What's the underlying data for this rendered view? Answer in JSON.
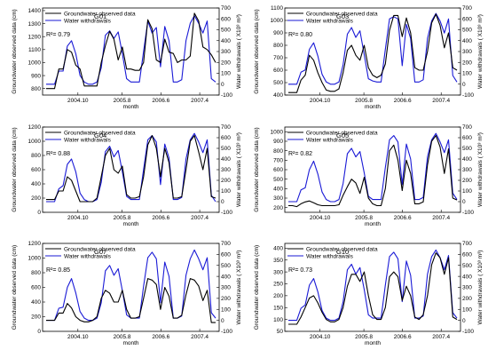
{
  "colors": {
    "groundwater": "#000000",
    "withdrawals": "#1a1ad6"
  },
  "chart_data": [
    {
      "type": "line",
      "title": "G01",
      "annotation": "R²= 0.79",
      "xlabel": "month",
      "ylabel": "Groundwater observed data (cm)",
      "y2label": "Water withdrawals ( X10³ m³)",
      "x_ticks": [
        "2004.10",
        "2005.8",
        "2006.6",
        "2007.4"
      ],
      "ylim": [
        750,
        1420
      ],
      "y_ticks": [
        800,
        900,
        1000,
        1100,
        1200,
        1300,
        1400
      ],
      "y2lim": [
        -100,
        700
      ],
      "y2_ticks": [
        -100,
        0,
        100,
        200,
        300,
        400,
        500,
        600,
        700
      ],
      "series": [
        {
          "name": "Groundwater observed data",
          "axis": "left",
          "values": [
            800,
            800,
            800,
            950,
            950,
            1100,
            1080,
            980,
            950,
            820,
            820,
            820,
            820,
            1000,
            1130,
            1240,
            1180,
            1020,
            1120,
            950,
            950,
            940,
            940,
            1000,
            1330,
            1260,
            1020,
            1000,
            1180,
            1080,
            1070,
            1000,
            1020,
            1020,
            1050,
            1380,
            1320,
            1120,
            1100,
            1060,
            1000
          ]
        },
        {
          "name": "Water withdrawals",
          "axis": "right",
          "values": [
            0,
            0,
            0,
            120,
            120,
            350,
            400,
            280,
            80,
            20,
            0,
            0,
            20,
            150,
            450,
            490,
            420,
            480,
            280,
            50,
            20,
            20,
            20,
            300,
            580,
            470,
            520,
            160,
            530,
            400,
            20,
            20,
            40,
            400,
            560,
            630,
            560,
            470,
            580,
            50,
            20
          ]
        }
      ]
    },
    {
      "type": "line",
      "title": "G03",
      "annotation": "R²= 0.80",
      "xlabel": "month",
      "ylabel": "Groundwater observed data (cm)",
      "y2label": "Water withdrawals ( X10³ m³)",
      "x_ticks": [
        "2004.10",
        "2005.8",
        "2006.6",
        "2007.4"
      ],
      "ylim": [
        400,
        1100
      ],
      "y_ticks": [
        400,
        500,
        600,
        700,
        800,
        900,
        1000,
        1100
      ],
      "y2lim": [
        -100,
        700
      ],
      "y2_ticks": [
        -100,
        0,
        100,
        200,
        300,
        400,
        500,
        600,
        700
      ],
      "series": [
        {
          "name": "Groundwater observed data",
          "axis": "left",
          "values": [
            420,
            420,
            420,
            520,
            560,
            720,
            680,
            580,
            500,
            440,
            430,
            430,
            450,
            580,
            760,
            800,
            720,
            680,
            800,
            620,
            560,
            540,
            560,
            650,
            920,
            1040,
            1040,
            870,
            1020,
            900,
            620,
            600,
            600,
            750,
            980,
            1050,
            960,
            780,
            900,
            620,
            600
          ]
        },
        {
          "name": "Water withdrawals",
          "axis": "right",
          "values": [
            0,
            0,
            0,
            110,
            130,
            320,
            380,
            260,
            90,
            20,
            0,
            0,
            20,
            180,
            460,
            520,
            430,
            490,
            270,
            50,
            30,
            20,
            20,
            320,
            600,
            620,
            600,
            170,
            550,
            420,
            20,
            20,
            40,
            420,
            580,
            650,
            580,
            470,
            600,
            80,
            20
          ]
        }
      ]
    },
    {
      "type": "line",
      "title": "G04",
      "annotation": "R²= 0.88",
      "xlabel": "month",
      "ylabel": "Groundwater observed data (cm)",
      "y2label": "Water withdrawals ( X10³ m³)",
      "x_ticks": [
        "2004.10",
        "2005.8",
        "2006.6",
        "2007.4"
      ],
      "ylim": [
        0,
        1200
      ],
      "y_ticks": [
        0,
        200,
        400,
        600,
        800,
        1000,
        1200
      ],
      "y2lim": [
        -100,
        700
      ],
      "y2_ticks": [
        -100,
        0,
        100,
        200,
        300,
        400,
        500,
        600,
        700
      ],
      "series": [
        {
          "name": "Groundwater observed data",
          "axis": "left",
          "values": [
            180,
            180,
            180,
            300,
            300,
            500,
            450,
            300,
            150,
            150,
            150,
            150,
            200,
            500,
            800,
            900,
            600,
            550,
            650,
            250,
            200,
            200,
            220,
            500,
            950,
            1080,
            900,
            500,
            900,
            700,
            200,
            200,
            220,
            600,
            1000,
            1080,
            850,
            600,
            900,
            220,
            200
          ]
        },
        {
          "name": "Water withdrawals",
          "axis": "right",
          "values": [
            0,
            0,
            0,
            120,
            150,
            350,
            400,
            280,
            80,
            20,
            0,
            0,
            20,
            180,
            470,
            520,
            420,
            480,
            280,
            50,
            20,
            20,
            20,
            300,
            580,
            620,
            560,
            160,
            540,
            410,
            20,
            20,
            40,
            400,
            580,
            640,
            560,
            460,
            580,
            60,
            0
          ]
        }
      ]
    },
    {
      "type": "line",
      "title": "G05",
      "annotation": "R²= 0.82",
      "xlabel": "month",
      "ylabel": "Groundwater observed data (cm)",
      "y2label": "Water withdrawals ( X10³ m³)",
      "x_ticks": [
        "2004.10",
        "2005.8",
        "2006.6",
        "2007.4"
      ],
      "ylim": [
        150,
        1050
      ],
      "y_ticks": [
        200,
        300,
        400,
        500,
        600,
        700,
        800,
        900,
        1000
      ],
      "y2lim": [
        -100,
        700
      ],
      "y2_ticks": [
        -100,
        0,
        100,
        200,
        300,
        400,
        500,
        600,
        700
      ],
      "series": [
        {
          "name": "Groundwater observed data",
          "axis": "left",
          "values": [
            220,
            220,
            210,
            240,
            260,
            270,
            250,
            230,
            220,
            220,
            220,
            220,
            230,
            330,
            420,
            500,
            460,
            350,
            520,
            300,
            240,
            220,
            220,
            400,
            800,
            860,
            700,
            380,
            700,
            560,
            240,
            240,
            260,
            650,
            900,
            960,
            840,
            560,
            820,
            300,
            280
          ]
        },
        {
          "name": "Water withdrawals",
          "axis": "right",
          "values": [
            0,
            0,
            0,
            110,
            130,
            300,
            380,
            260,
            90,
            20,
            0,
            0,
            20,
            170,
            450,
            500,
            420,
            470,
            270,
            50,
            20,
            20,
            20,
            320,
            580,
            620,
            560,
            160,
            540,
            400,
            20,
            20,
            40,
            420,
            580,
            640,
            560,
            460,
            580,
            80,
            20
          ]
        }
      ]
    },
    {
      "type": "line",
      "title": "G07",
      "annotation": "R²= 0.85",
      "xlabel": "month",
      "ylabel": "Groundwater observed data (cm)",
      "y2label": "Water withdrawals ( X10³ m³)",
      "x_ticks": [
        "2004.10",
        "2005.8",
        "2006.6",
        "2007.4"
      ],
      "ylim": [
        0,
        1200
      ],
      "y_ticks": [
        0,
        200,
        400,
        600,
        800,
        1000,
        1200
      ],
      "y2lim": [
        -100,
        700
      ],
      "y2_ticks": [
        -100,
        0,
        100,
        200,
        300,
        400,
        500,
        600,
        700
      ],
      "series": [
        {
          "name": "Groundwater observed data",
          "axis": "left",
          "values": [
            150,
            150,
            150,
            250,
            250,
            380,
            320,
            200,
            150,
            130,
            130,
            150,
            200,
            450,
            560,
            520,
            400,
            400,
            560,
            300,
            180,
            180,
            200,
            450,
            720,
            700,
            640,
            300,
            600,
            480,
            180,
            180,
            220,
            500,
            720,
            700,
            620,
            420,
            560,
            120,
            120
          ]
        },
        {
          "name": "Water withdrawals",
          "axis": "right",
          "values": [
            0,
            0,
            0,
            110,
            120,
            300,
            380,
            250,
            80,
            20,
            0,
            0,
            20,
            160,
            450,
            500,
            410,
            470,
            270,
            50,
            20,
            20,
            20,
            310,
            570,
            620,
            560,
            160,
            530,
            400,
            20,
            20,
            40,
            410,
            560,
            640,
            560,
            460,
            570,
            70,
            20
          ]
        }
      ]
    },
    {
      "type": "line",
      "title": "G10",
      "annotation": "R²= 0.73",
      "xlabel": "month",
      "ylabel": "Groundwater observed data (cm)",
      "y2label": "Water withdrawals ( X10³ m³)",
      "x_ticks": [
        "2004.10",
        "2005.8",
        "2006.6",
        "2007.4"
      ],
      "ylim": [
        50,
        420
      ],
      "y_ticks": [
        50,
        100,
        150,
        200,
        250,
        300,
        350,
        400
      ],
      "y2lim": [
        -100,
        700
      ],
      "y2_ticks": [
        -100,
        0,
        100,
        200,
        300,
        400,
        500,
        600,
        700
      ],
      "series": [
        {
          "name": "Groundwater observed data",
          "axis": "left",
          "values": [
            80,
            80,
            80,
            110,
            150,
            190,
            200,
            170,
            130,
            100,
            90,
            90,
            100,
            150,
            240,
            290,
            290,
            260,
            300,
            200,
            120,
            100,
            100,
            150,
            280,
            300,
            280,
            180,
            240,
            200,
            110,
            100,
            120,
            200,
            330,
            380,
            360,
            290,
            360,
            110,
            100
          ]
        },
        {
          "name": "Water withdrawals",
          "axis": "right",
          "values": [
            0,
            0,
            0,
            110,
            140,
            320,
            380,
            260,
            90,
            20,
            0,
            0,
            20,
            170,
            460,
            510,
            420,
            480,
            280,
            50,
            20,
            20,
            20,
            320,
            580,
            620,
            560,
            170,
            540,
            410,
            20,
            20,
            40,
            420,
            580,
            640,
            570,
            460,
            590,
            70,
            20
          ]
        }
      ]
    }
  ]
}
